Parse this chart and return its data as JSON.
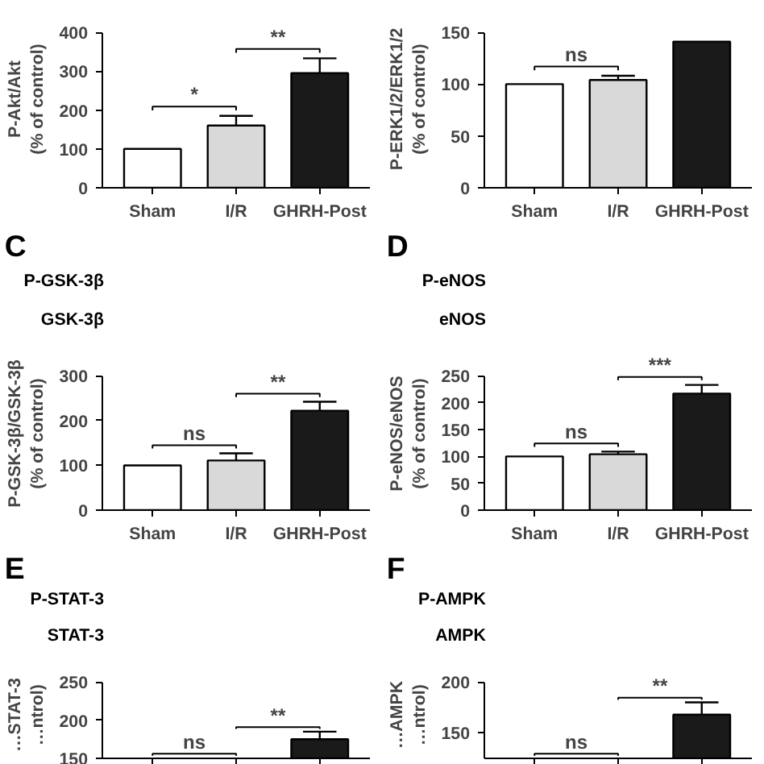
{
  "chart_data": [
    {
      "type": "bar",
      "categories": [
        "Sham",
        "I/R",
        "GHRH-Post"
      ],
      "values": [
        100,
        160,
        295
      ],
      "colors": [
        "#ffffff",
        "#d9d9d9",
        "#1a1a1a"
      ],
      "errors": [
        null,
        [
          160,
          185
        ],
        [
          295,
          333
        ]
      ],
      "ylabel": "P-Akt/Akt\n(% of control)",
      "ylim": [
        0,
        400
      ],
      "yticks": [
        0,
        100,
        200,
        300,
        400
      ],
      "annotations": [
        "*",
        "**"
      ]
    },
    {
      "type": "bar",
      "categories": [
        "Sham",
        "I/R",
        "GHRH-Post"
      ],
      "values": [
        100,
        104,
        141
      ],
      "colors": [
        "#ffffff",
        "#d9d9d9",
        "#1a1a1a"
      ],
      "errors": [
        null,
        [
          104,
          108
        ],
        null
      ],
      "ylabel": "P-ERK1/2/ERK1/2\n(% of control)",
      "ylim": [
        0,
        150
      ],
      "yticks": [
        0,
        50,
        100,
        150
      ],
      "annotations": [
        "ns"
      ]
    },
    {
      "type": "other",
      "title": "C",
      "annotations": [
        "P-GSK-3β",
        "GSK-3β"
      ]
    },
    {
      "type": "other",
      "title": "D",
      "annotations": [
        "P-eNOS",
        "eNOS"
      ]
    },
    {
      "type": "bar",
      "categories": [
        "Sham",
        "I/R",
        "GHRH-Post"
      ],
      "values": [
        100,
        111,
        222
      ],
      "colors": [
        "#ffffff",
        "#d9d9d9",
        "#1a1a1a"
      ],
      "errors": [
        null,
        [
          111,
          127
        ],
        [
          222,
          242
        ]
      ],
      "ylabel": "P-GSK-3β/GSK-3β\n(% of control)",
      "ylim": [
        0,
        300
      ],
      "yticks": [
        0,
        100,
        200,
        300
      ],
      "annotations": [
        "ns",
        "**"
      ]
    },
    {
      "type": "bar",
      "categories": [
        "Sham",
        "I/R",
        "GHRH-Post"
      ],
      "values": [
        100,
        104,
        217
      ],
      "colors": [
        "#ffffff",
        "#d9d9d9",
        "#1a1a1a"
      ],
      "errors": [
        null,
        [
          104,
          109
        ],
        [
          217,
          233
        ]
      ],
      "ylabel": "P-eNOS/eNOS\n(% of control)",
      "ylim": [
        0,
        250
      ],
      "yticks": [
        0,
        50,
        100,
        150,
        200,
        250
      ],
      "annotations": [
        "ns",
        "***"
      ]
    },
    {
      "type": "other",
      "title": "E",
      "annotations": [
        "P-STAT-3",
        "STAT-3"
      ]
    },
    {
      "type": "other",
      "title": "F",
      "annotations": [
        "P-AMPK",
        "AMPK"
      ]
    },
    {
      "type": "bar",
      "categories": [
        null,
        null,
        null
      ],
      "values": [
        null,
        null,
        175
      ],
      "colors": [
        "#ffffff",
        "#d9d9d9",
        "#1a1a1a"
      ],
      "errors": [
        null,
        null,
        [
          175,
          185
        ]
      ],
      "ylabel": "…STAT-3\n…ntrol)",
      "ylim": [
        150,
        250
      ],
      "yticks": [
        150,
        200,
        250
      ],
      "annotations": [
        "ns",
        "**"
      ],
      "tick_labels": "y"
    },
    {
      "type": "bar",
      "categories": [
        null,
        null,
        null
      ],
      "values": [
        null,
        null,
        168
      ],
      "colors": [
        "#ffffff",
        "#d9d9d9",
        "#1a1a1a"
      ],
      "errors": [
        null,
        null,
        [
          168,
          180
        ]
      ],
      "ylabel": "…AMPK\n…ntrol)",
      "ylim": [
        125,
        200
      ],
      "yticks": [
        150,
        200
      ],
      "annotations": [
        "ns",
        "**"
      ],
      "tick_labels": "y"
    }
  ]
}
